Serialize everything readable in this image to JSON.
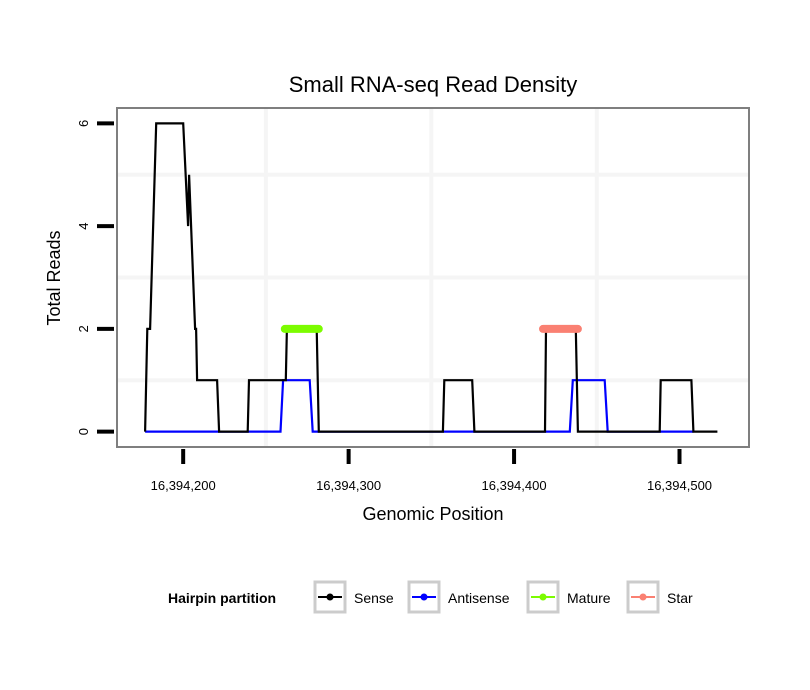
{
  "chart_data": {
    "type": "line",
    "title": "Small RNA-seq Read Density",
    "xlabel": "Genomic Position",
    "ylabel": "Total Reads",
    "xlim": [
      16394160,
      16394542
    ],
    "ylim": [
      -0.3,
      6.3
    ],
    "x_ticks": [
      16394200,
      16394300,
      16394400,
      16394500
    ],
    "x_tick_labels": [
      "16,394,200",
      "16,394,300",
      "16,394,400",
      "16,394,500"
    ],
    "y_ticks": [
      0,
      2,
      4,
      6
    ],
    "y_tick_labels": [
      "0",
      "2",
      "4",
      "6"
    ],
    "x_minor_grid": [
      16394250,
      16394350,
      16394450
    ],
    "y_minor_grid": [
      1,
      3,
      5
    ],
    "grid": true,
    "legend": {
      "title": "Hairpin partition",
      "position": "bottom",
      "entries": [
        {
          "name": "Sense",
          "color": "#000000"
        },
        {
          "name": "Antisense",
          "color": "#0000ff"
        },
        {
          "name": "Mature",
          "color": "#7cfc00"
        },
        {
          "name": "Star",
          "color": "#fa8072"
        }
      ]
    },
    "series": [
      {
        "name": "Sense",
        "color": "#000000",
        "points": [
          [
            16394177,
            0
          ],
          [
            16394178.3,
            2
          ],
          [
            16394180,
            2
          ],
          [
            16394183.7,
            6
          ],
          [
            16394200,
            6
          ],
          [
            16394203,
            4
          ],
          [
            16394203.6,
            5
          ],
          [
            16394207.2,
            2
          ],
          [
            16394207.8,
            2
          ],
          [
            16394208.4,
            1
          ],
          [
            16394220.5,
            1
          ],
          [
            16394221.7,
            0
          ],
          [
            16394239,
            0
          ],
          [
            16394239.8,
            1
          ],
          [
            16394262,
            1
          ],
          [
            16394262.7,
            2
          ],
          [
            16394280.7,
            2
          ],
          [
            16394282,
            0
          ],
          [
            16394357,
            0
          ],
          [
            16394357.8,
            1
          ],
          [
            16394374.7,
            1
          ],
          [
            16394376,
            0
          ],
          [
            16394418.7,
            0
          ],
          [
            16394419.3,
            2
          ],
          [
            16394437.3,
            2
          ],
          [
            16394438.6,
            0
          ],
          [
            16394488,
            0
          ],
          [
            16394488.6,
            1
          ],
          [
            16394507.2,
            1
          ],
          [
            16394508.4,
            0
          ],
          [
            16394522.9,
            0
          ]
        ]
      },
      {
        "name": "Antisense",
        "color": "#0000ff",
        "points": [
          [
            16394177,
            0
          ],
          [
            16394258.8,
            0
          ],
          [
            16394260.4,
            1
          ],
          [
            16394276.5,
            1
          ],
          [
            16394278.3,
            0
          ],
          [
            16394433.7,
            0
          ],
          [
            16394435.5,
            1
          ],
          [
            16394454.8,
            1
          ],
          [
            16394456.6,
            0
          ],
          [
            16394508.4,
            0
          ]
        ]
      },
      {
        "name": "Mature",
        "color": "#7cfc00",
        "points": [
          [
            16394261.4,
            2
          ],
          [
            16394282,
            2
          ]
        ]
      },
      {
        "name": "Star",
        "color": "#fa8072",
        "points": [
          [
            16394417.5,
            2
          ],
          [
            16394438.6,
            2
          ]
        ]
      }
    ]
  }
}
